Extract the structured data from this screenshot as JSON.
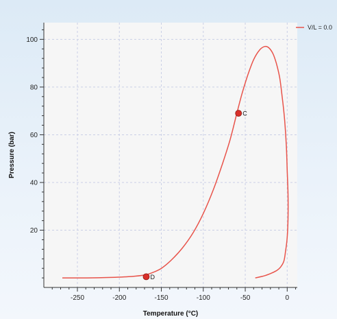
{
  "chart_data": {
    "type": "line",
    "xlabel": "Temperature (°C)",
    "ylabel": "Pressure (bar)",
    "xlim": [
      -290,
      12
    ],
    "ylim": [
      -4,
      107
    ],
    "x_ticks": [
      -250,
      -200,
      -150,
      -100,
      -50,
      0
    ],
    "x_tick_labels": [
      "-250",
      "-200",
      "-150",
      "-100",
      "-50",
      "0"
    ],
    "y_ticks": [
      20,
      40,
      60,
      80,
      100
    ],
    "y_tick_labels": [
      "20",
      "40",
      "60",
      "80",
      "100"
    ],
    "grid": true,
    "legend_position": "top-right",
    "series": [
      {
        "name": "V/L = 0.0",
        "color": "#e8534a",
        "x": [
          -268,
          -240,
          -210,
          -185,
          -170,
          -162,
          -150,
          -138,
          -125,
          -112,
          -100,
          -88,
          -77,
          -68,
          -60,
          -54,
          -47,
          -40,
          -33,
          -27,
          -22,
          -17,
          -13,
          -9,
          -6,
          -3,
          -1,
          0,
          1,
          1,
          0,
          -2,
          -4,
          -8,
          -13,
          -20,
          -28,
          -38
        ],
        "y": [
          0,
          0,
          0.2,
          0.6,
          1.2,
          2,
          4,
          7.5,
          12.5,
          19,
          27,
          37,
          48,
          58,
          69,
          77,
          85,
          91.5,
          95.5,
          97,
          96.5,
          94,
          90,
          84,
          76,
          66,
          55,
          45,
          35,
          25,
          17,
          11,
          7,
          4.5,
          3,
          1.8,
          0.8,
          0
        ]
      }
    ],
    "points": [
      {
        "label": "C",
        "x": -58,
        "y": 69
      },
      {
        "label": "D",
        "x": -168,
        "y": 0.5
      }
    ]
  }
}
